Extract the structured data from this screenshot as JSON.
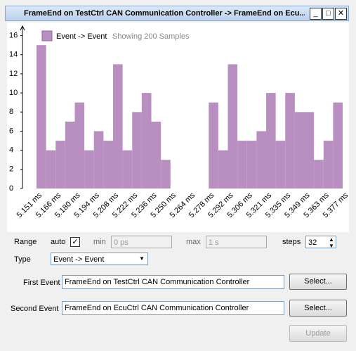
{
  "window": {
    "title": "FrameEnd on TestCtrl CAN Communication Controller -> FrameEnd on Ecu..."
  },
  "chart_data": {
    "type": "histogram",
    "legend": "Event -> Event",
    "subtitle": "Showing 200 Samples",
    "color": "#b98fc1",
    "values": [
      15,
      4,
      5,
      7,
      9,
      4,
      6,
      5,
      13,
      4,
      8,
      10,
      7,
      3,
      0,
      0,
      0,
      0,
      9,
      4,
      13,
      5,
      5,
      6,
      10,
      5,
      10,
      8,
      8,
      3,
      5,
      9
    ],
    "x_labels": [
      "5.151 ms",
      "5.166 ms",
      "5.180 ms",
      "5.194 ms",
      "5.208 ms",
      "5.222 ms",
      "5.236 ms",
      "5.250 ms",
      "5.264 ms",
      "5.278 ms",
      "5.292 ms",
      "5.306 ms",
      "5.321 ms",
      "5.335 ms",
      "5.349 ms",
      "5.363 ms",
      "5.377 ms"
    ],
    "ylim": [
      0,
      17
    ],
    "yticks": [
      0,
      2,
      4,
      6,
      8,
      10,
      12,
      14,
      16
    ]
  },
  "form": {
    "range_label": "Range",
    "auto_label": "auto",
    "auto_checked": true,
    "min_label": "min",
    "min_value": "0 ps",
    "max_label": "max",
    "max_value": "1 s",
    "steps_label": "steps",
    "steps_value": "32",
    "type_label": "Type",
    "type_value": "Event -> Event",
    "first_label": "First Event",
    "first_value": "FrameEnd on TestCtrl CAN Communication Controller",
    "second_label": "Second Event",
    "second_value": "FrameEnd on EcuCtrl CAN Communication Controller",
    "select_button": "Select...",
    "update_button": "Update"
  }
}
